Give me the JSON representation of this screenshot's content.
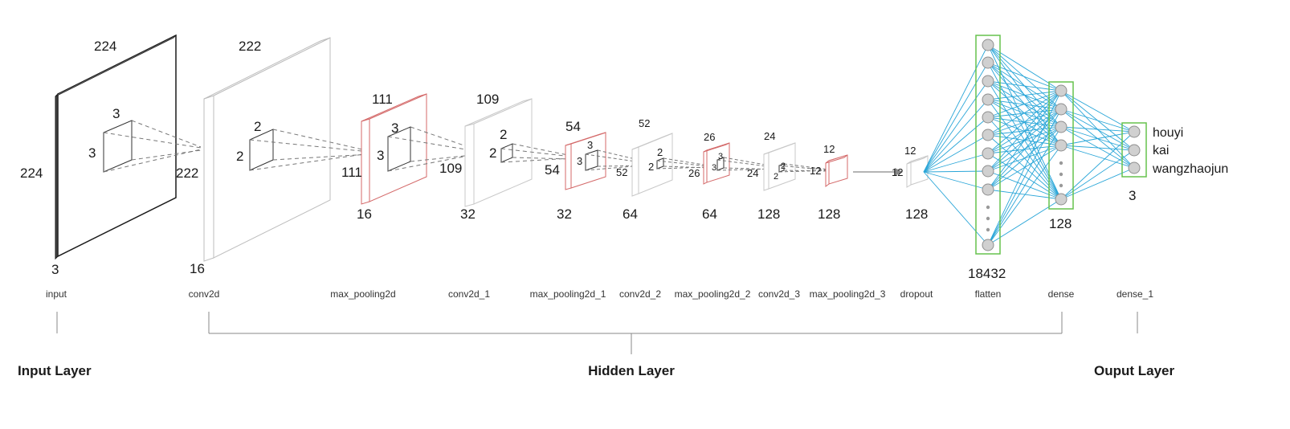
{
  "layers": [
    {
      "name": "input",
      "height": "224",
      "width": "224",
      "depth": "3",
      "kernel": [
        "3",
        "3"
      ]
    },
    {
      "name": "conv2d",
      "height": "222",
      "width": "222",
      "depth": "16",
      "kernel": [
        "2",
        "2"
      ]
    },
    {
      "name": "max_pooling2d",
      "height": "111",
      "width": "111",
      "depth": "16",
      "kernel": [
        "3",
        "3"
      ]
    },
    {
      "name": "conv2d_1",
      "height": "109",
      "width": "109",
      "depth": "32",
      "kernel": [
        "2",
        "2"
      ]
    },
    {
      "name": "max_pooling2d_1",
      "height": "54",
      "width": "54",
      "depth": "32",
      "kernel": [
        "3",
        "3"
      ]
    },
    {
      "name": "conv2d_2",
      "height": "52",
      "width": "52",
      "depth": "64",
      "kernel": [
        "2",
        "2"
      ]
    },
    {
      "name": "max_pooling2d_2",
      "height": "26",
      "width": "26",
      "depth": "64",
      "kernel": [
        "3",
        "3"
      ]
    },
    {
      "name": "conv2d_3",
      "height": "24",
      "width": "24",
      "depth": "128",
      "kernel": [
        "2",
        "2"
      ]
    },
    {
      "name": "max_pooling2d_3",
      "height": "12",
      "width": "12",
      "depth": "128"
    },
    {
      "name": "dropout",
      "height": "12",
      "width": "12",
      "depth": "128"
    },
    {
      "name": "flatten",
      "units": "18432"
    },
    {
      "name": "dense",
      "units": "128"
    },
    {
      "name": "dense_1",
      "units": "3"
    }
  ],
  "outputs": [
    "houyi",
    "kai",
    "wangzhaojun"
  ],
  "groups": {
    "input": "Input Layer",
    "hidden": "Hidden Layer",
    "output": "Ouput Layer"
  },
  "colors": {
    "input_outline": "#1a1a1a",
    "conv_outline": "#c8c8c8",
    "pool_outline": "#d46a6a",
    "dense_box": "#66c24d",
    "edge": "#2aa6d8",
    "node_fill": "#d0d0d0"
  }
}
